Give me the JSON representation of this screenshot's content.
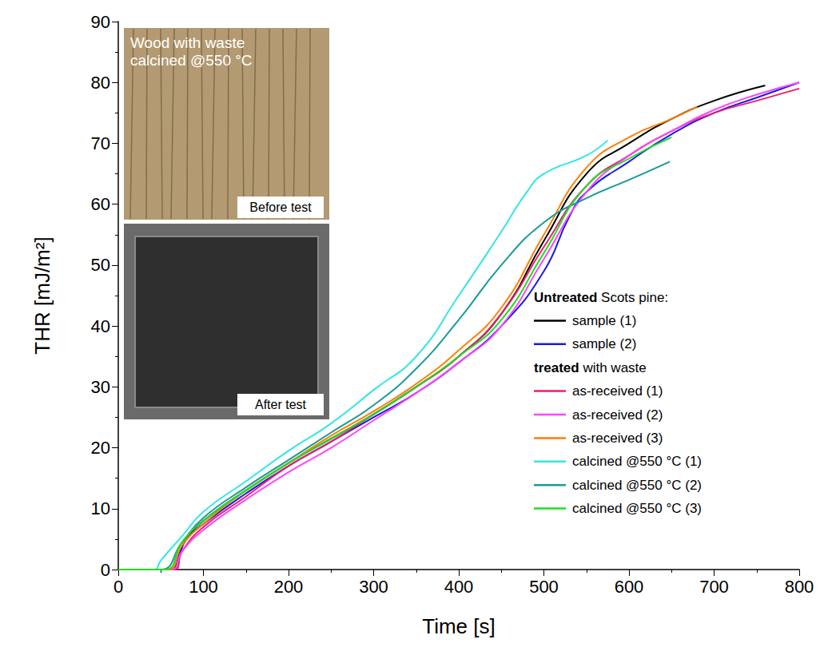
{
  "chart_data": {
    "type": "line",
    "x_label": "Time [s]",
    "y_label": "THR [mJ/m²]",
    "xlim": [
      0,
      800
    ],
    "xticks": [
      0,
      100,
      200,
      300,
      400,
      500,
      600,
      700,
      800
    ],
    "ylim": [
      0,
      90
    ],
    "yticks": [
      0,
      10,
      20,
      30,
      40,
      50,
      60,
      70,
      80,
      90
    ],
    "grid": false,
    "legend": "lower right",
    "annotations": [
      "Wood with waste calcined @550 °C",
      "Before test",
      "After test"
    ],
    "series": [
      {
        "name": "sample (1)",
        "group": "Untreated Scots pine:",
        "color": "#000000",
        "x": [
          0,
          62,
          70,
          80,
          100,
          150,
          200,
          250,
          300,
          350,
          400,
          450,
          500,
          550,
          600,
          650,
          700,
          760
        ],
        "values": [
          0,
          0,
          2,
          5,
          8,
          13,
          17.5,
          21.5,
          25.5,
          30,
          35,
          42,
          54,
          65,
          70,
          74,
          77,
          79.5
        ]
      },
      {
        "name": "sample (2)",
        "group": "Untreated Scots pine:",
        "color": "#1a1ae6",
        "x": [
          0,
          60,
          70,
          80,
          100,
          150,
          200,
          250,
          300,
          350,
          400,
          450,
          500,
          530,
          550,
          600,
          650,
          700,
          750,
          800
        ],
        "values": [
          0,
          0,
          2,
          5,
          7.5,
          12.5,
          17,
          21,
          25,
          29,
          34,
          40,
          49,
          58,
          62,
          67,
          71.5,
          75,
          77.5,
          80
        ]
      },
      {
        "name": "as-received (1)",
        "group": "treated with waste",
        "color": "#e8206e",
        "x": [
          0,
          65,
          75,
          100,
          150,
          200,
          250,
          300,
          350,
          400,
          450,
          500,
          550,
          600,
          650,
          700,
          750,
          800
        ],
        "values": [
          0,
          0,
          3,
          7,
          12,
          17,
          21,
          25.5,
          30,
          35,
          42,
          53,
          63,
          68,
          72,
          75,
          77,
          79
        ]
      },
      {
        "name": "as-received (2)",
        "group": "treated with waste",
        "color": "#ff44ff",
        "x": [
          0,
          62,
          75,
          100,
          150,
          200,
          250,
          300,
          350,
          400,
          450,
          500,
          550,
          600,
          650,
          700,
          750,
          800
        ],
        "values": [
          0,
          0,
          3,
          6.5,
          11.5,
          16,
          20,
          24.5,
          29,
          34,
          40,
          51,
          62,
          68,
          72,
          75.5,
          78,
          80
        ]
      },
      {
        "name": "as-received (3)",
        "group": "treated with waste",
        "color": "#ff7f00",
        "x": [
          0,
          58,
          75,
          100,
          150,
          200,
          250,
          300,
          350,
          400,
          450,
          500,
          550,
          600,
          650,
          680
        ],
        "values": [
          0,
          0,
          4,
          7.5,
          13,
          17.5,
          22,
          26,
          30.5,
          36,
          43,
          55,
          66,
          71,
          74,
          76
        ]
      },
      {
        "name": "calcined @550 °C (1)",
        "group": "treated with waste",
        "color": "#33e6e6",
        "x": [
          0,
          42,
          50,
          75,
          100,
          150,
          200,
          250,
          300,
          350,
          400,
          450,
          480,
          500,
          550,
          575
        ],
        "values": [
          0,
          0,
          1.5,
          5.5,
          9.5,
          14.5,
          19.5,
          24,
          29.5,
          35,
          45,
          55.5,
          62,
          65,
          68,
          70.5
        ]
      },
      {
        "name": "calcined @550 °C (2)",
        "group": "treated with waste",
        "color": "#1a9a9a",
        "x": [
          0,
          50,
          75,
          100,
          150,
          200,
          250,
          300,
          350,
          400,
          450,
          500,
          550,
          600,
          648
        ],
        "values": [
          0,
          0,
          4.5,
          8.5,
          13.5,
          18,
          22.5,
          27,
          33,
          41,
          50,
          57,
          61,
          64,
          67
        ]
      },
      {
        "name": "calcined @550 °C (3)",
        "group": "treated with waste",
        "color": "#22dd22",
        "x": [
          0,
          55,
          75,
          100,
          150,
          200,
          250,
          300,
          350,
          400,
          450,
          500,
          550,
          600,
          650
        ],
        "values": [
          0,
          0,
          4.5,
          8,
          13,
          17.5,
          21.5,
          25.5,
          30,
          35,
          41,
          52,
          63,
          67.5,
          71
        ]
      }
    ]
  }
}
